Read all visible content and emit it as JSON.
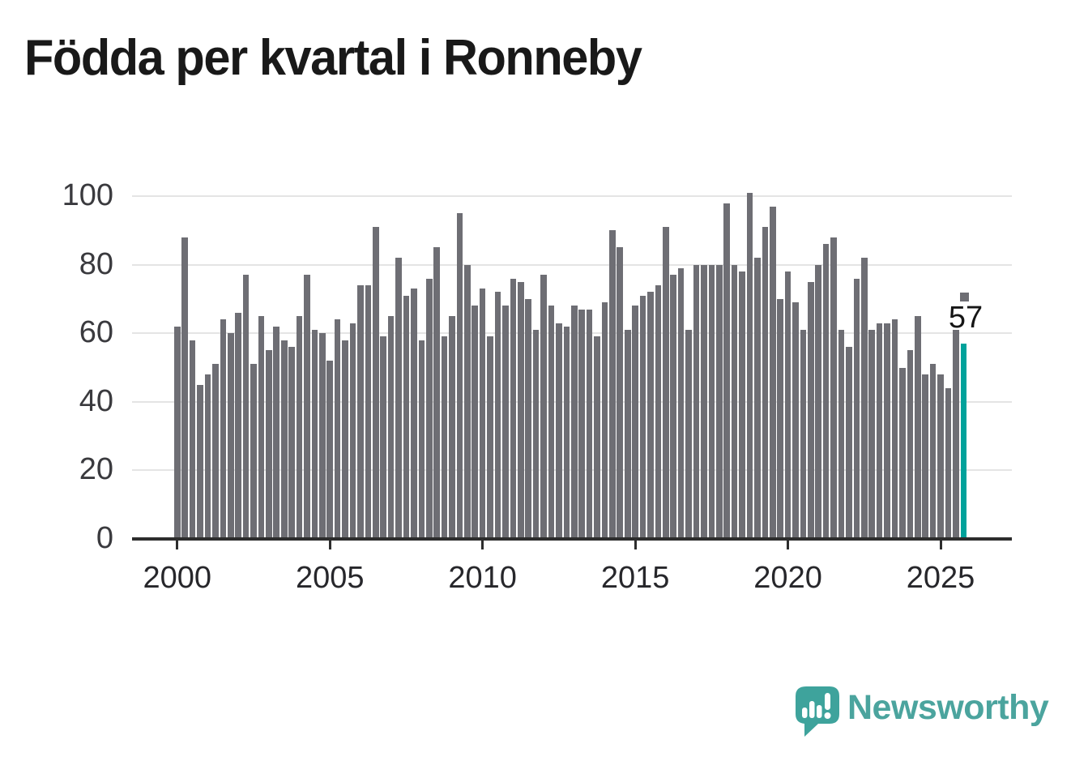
{
  "title": "Födda per kvartal i Ronneby",
  "chart_data": {
    "type": "bar",
    "title": "Födda per kvartal i Ronneby",
    "x_start": "2000 Q1",
    "x_end": "2025 Q4",
    "values": [
      62,
      88,
      58,
      45,
      48,
      51,
      64,
      60,
      66,
      77,
      51,
      65,
      55,
      62,
      58,
      56,
      65,
      77,
      61,
      60,
      52,
      64,
      58,
      63,
      74,
      74,
      91,
      59,
      65,
      82,
      71,
      73,
      58,
      76,
      85,
      59,
      65,
      95,
      80,
      68,
      73,
      59,
      72,
      68,
      76,
      75,
      70,
      61,
      77,
      68,
      63,
      62,
      68,
      67,
      67,
      59,
      69,
      90,
      85,
      61,
      68,
      71,
      72,
      74,
      91,
      77,
      79,
      61,
      80,
      80,
      80,
      80,
      98,
      80,
      78,
      101,
      82,
      91,
      97,
      70,
      78,
      69,
      61,
      75,
      80,
      86,
      88,
      61,
      56,
      76,
      82,
      61,
      63,
      63,
      64,
      50,
      55,
      65,
      48,
      51,
      48,
      44,
      61,
      57
    ],
    "x_tick_labels": [
      "2000",
      "2005",
      "2010",
      "2015",
      "2020",
      "2025"
    ],
    "x_tick_every_n_bars": 20,
    "yticks": [
      0,
      20,
      40,
      60,
      80,
      100
    ],
    "ylim": [
      0,
      105
    ],
    "grid": "horizontal",
    "legend": "none",
    "last_value_label": "57",
    "bar_color": "#6e6e74",
    "highlight_color": "#00a29b"
  },
  "annotation": {
    "value": "57"
  },
  "logo": {
    "wordmark": "Newsworthy",
    "color": "#4ba49e",
    "mark_color": "#3ea39c"
  },
  "colors": {
    "background": "#ffffff",
    "bar": "#6e6e74",
    "accent_teal": "#00a29b",
    "gridline": "#e4e4e4",
    "axis": "#2d2d2d",
    "title_text": "#191919",
    "tick_text": "#3a3a3e"
  }
}
